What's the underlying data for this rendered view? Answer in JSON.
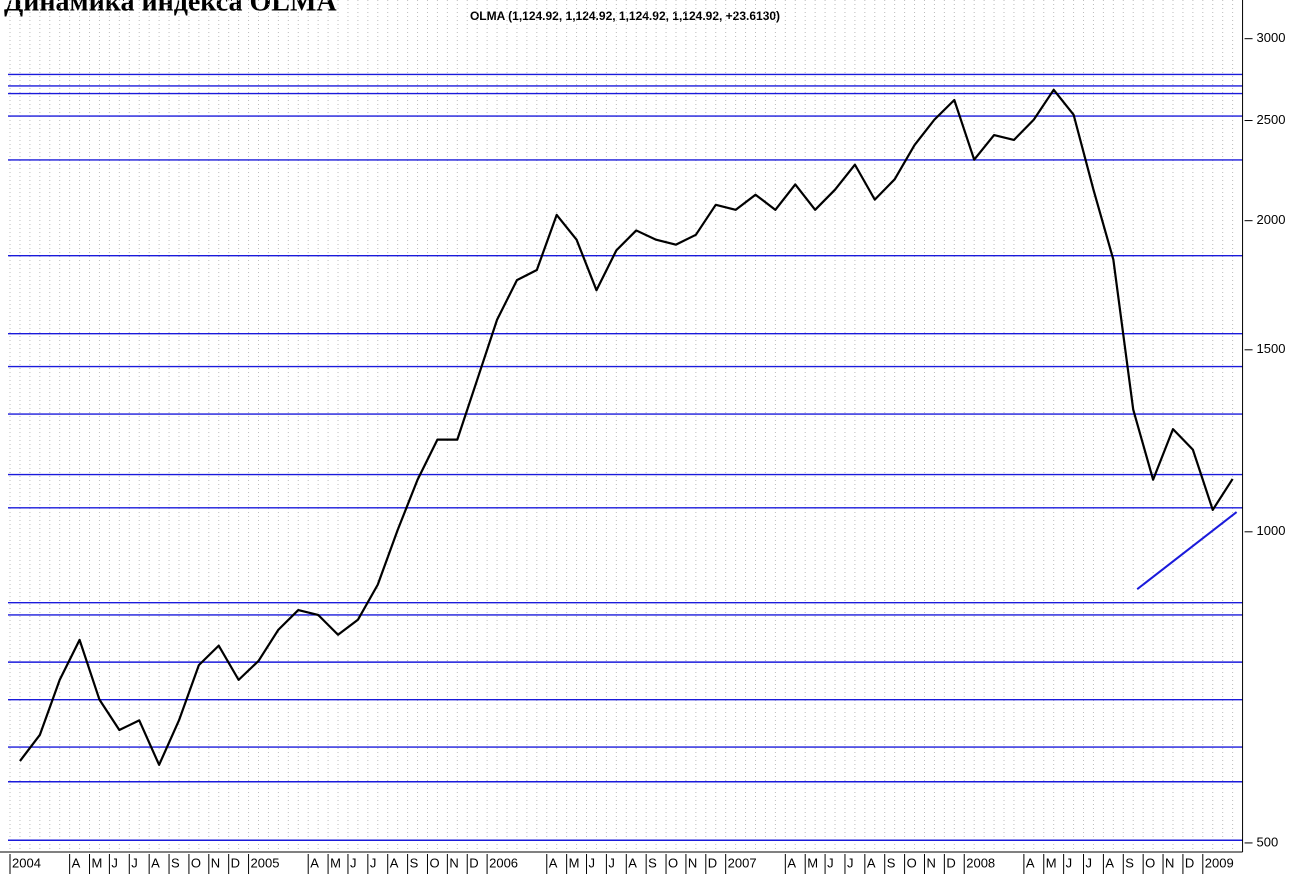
{
  "chart_data": {
    "type": "line",
    "title": "Динамика индекса OLMA",
    "subtitle": "OLMA (1,124.92, 1,124.92, 1,124.92, 1,124.92, +23.6130)",
    "log_scale": true,
    "grid": true,
    "categories": [
      "2004",
      null,
      null,
      "A",
      "M",
      "J",
      "J",
      "A",
      "S",
      "O",
      "N",
      "D",
      "2005",
      null,
      null,
      "A",
      "M",
      "J",
      "J",
      "A",
      "S",
      "O",
      "N",
      "D",
      "2006",
      null,
      null,
      "A",
      "M",
      "J",
      "J",
      "A",
      "S",
      "O",
      "N",
      "D",
      "2007",
      null,
      null,
      "A",
      "M",
      "J",
      "J",
      "A",
      "S",
      "O",
      "N",
      "D",
      "2008",
      null,
      null,
      "A",
      "M",
      "J",
      "J",
      "A",
      "S",
      "O",
      "N",
      "D",
      "2009",
      null
    ],
    "series": [
      {
        "name": "OLMA",
        "color": "#000000",
        "values": [
          600,
          636,
          719,
          786,
          688,
          643,
          657,
          595,
          657,
          743,
          776,
          719,
          750,
          804,
          840,
          831,
          795,
          822,
          889,
          1004,
          1123,
          1228,
          1228,
          1403,
          1604,
          1752,
          1792,
          2026,
          1917,
          1713,
          1872,
          1957,
          1917,
          1896,
          1938,
          2072,
          2049,
          2119,
          2049,
          2168,
          2049,
          2143,
          2266,
          2096,
          2193,
          2367,
          2505,
          2617,
          2291,
          2420,
          2394,
          2505,
          2677,
          2533,
          2143,
          1834,
          1313,
          1123,
          1257,
          1201,
          1050,
          1125
        ]
      }
    ],
    "levels": [
      2770,
      2700,
      2655,
      2525,
      2290,
      1850,
      1555,
      1445,
      1300,
      1136,
      1055,
      854,
      831,
      748,
      688,
      619,
      573,
      503
    ],
    "levels_color": "#1a1adb",
    "trendline": {
      "x": [
        56.7,
        61.7
      ],
      "values": [
        880,
        1045
      ],
      "color": "#1a1adb"
    },
    "ylim": [
      490,
      3270
    ],
    "yticks": [
      500,
      1000,
      1500,
      2000,
      2500,
      3000
    ]
  }
}
